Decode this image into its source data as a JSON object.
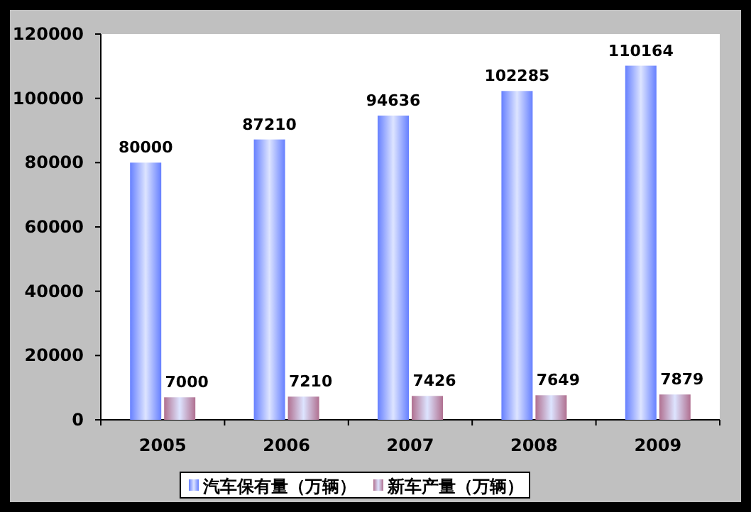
{
  "chart_data": {
    "type": "bar",
    "categories": [
      "2005",
      "2006",
      "2007",
      "2008",
      "2009"
    ],
    "series": [
      {
        "name": "汽车保有量（万辆）",
        "color": "#6680ff",
        "values": [
          80000,
          87210,
          94636,
          102285,
          110164
        ]
      },
      {
        "name": "新车产量（万辆）",
        "color": "#b07090",
        "values": [
          7000,
          7210,
          7426,
          7649,
          7879
        ]
      }
    ],
    "ylim": [
      0,
      120000
    ],
    "yticks": [
      0,
      20000,
      40000,
      60000,
      80000,
      100000,
      120000
    ],
    "grid": false,
    "legend": "bottom",
    "data_labels": true
  }
}
